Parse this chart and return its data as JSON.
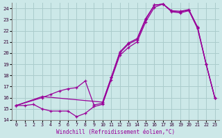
{
  "background_color": "#cce8e8",
  "grid_color": "#aacccc",
  "line_color": "#990099",
  "xlabel": "Windchill (Refroidissement éolien,°C)",
  "xlim": [
    -0.5,
    23.5
  ],
  "ylim": [
    14,
    24.5
  ],
  "yticks": [
    14,
    15,
    16,
    17,
    18,
    19,
    20,
    21,
    22,
    23,
    24
  ],
  "xticks": [
    0,
    1,
    2,
    3,
    4,
    5,
    6,
    7,
    8,
    9,
    10,
    11,
    12,
    13,
    14,
    15,
    16,
    17,
    18,
    19,
    20,
    21,
    22,
    23
  ],
  "line1_x": [
    0,
    1,
    2,
    3,
    4,
    5,
    6,
    7,
    8,
    9,
    10,
    11,
    12,
    13,
    14,
    15,
    16,
    17,
    18,
    19,
    20,
    21,
    22,
    23
  ],
  "line1_y": [
    15.3,
    15.3,
    15.4,
    15.0,
    14.8,
    14.8,
    14.8,
    14.3,
    14.6,
    15.2,
    15.4,
    17.6,
    19.8,
    20.5,
    21.0,
    22.8,
    24.1,
    24.4,
    23.7,
    23.6,
    23.8,
    22.2,
    19.0,
    16.0
  ],
  "line2_x": [
    0,
    3,
    10,
    11,
    12,
    13,
    14,
    15,
    16,
    17,
    18,
    19,
    20,
    21,
    22,
    23
  ],
  "line2_y": [
    15.3,
    16.1,
    15.6,
    17.8,
    20.1,
    20.9,
    21.3,
    23.1,
    24.3,
    24.4,
    23.75,
    23.7,
    23.85,
    22.3,
    19.0,
    16.0
  ],
  "line3_x": [
    0,
    3,
    4,
    5,
    6,
    7,
    8,
    9,
    10,
    11,
    12,
    13,
    14,
    15,
    16,
    17,
    18,
    19,
    20,
    21,
    22,
    23
  ],
  "line3_y": [
    15.3,
    16.0,
    16.3,
    16.6,
    16.8,
    16.9,
    17.5,
    15.35,
    15.5,
    17.8,
    20.0,
    20.8,
    21.2,
    23.0,
    24.3,
    24.4,
    23.8,
    23.75,
    23.9,
    22.35,
    19.0,
    16.0
  ]
}
